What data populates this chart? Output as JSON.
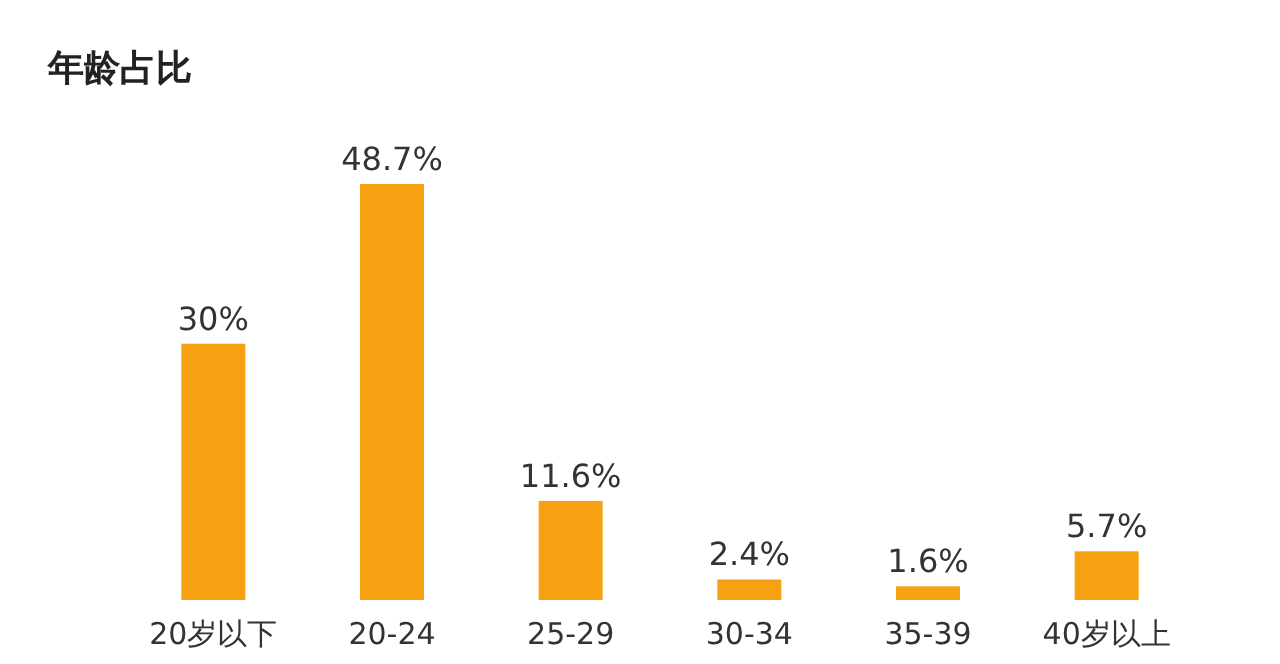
{
  "chart_data": {
    "type": "bar",
    "title": "年龄占比",
    "categories": [
      "20岁以下",
      "20-24",
      "25-29",
      "30-34",
      "35-39",
      "40岁以上"
    ],
    "values": [
      30,
      48.7,
      11.6,
      2.4,
      1.6,
      5.7
    ],
    "value_labels": [
      "30%",
      "48.7%",
      "11.6%",
      "2.4%",
      "1.6%",
      "5.7%"
    ],
    "color": "#f5a111"
  }
}
